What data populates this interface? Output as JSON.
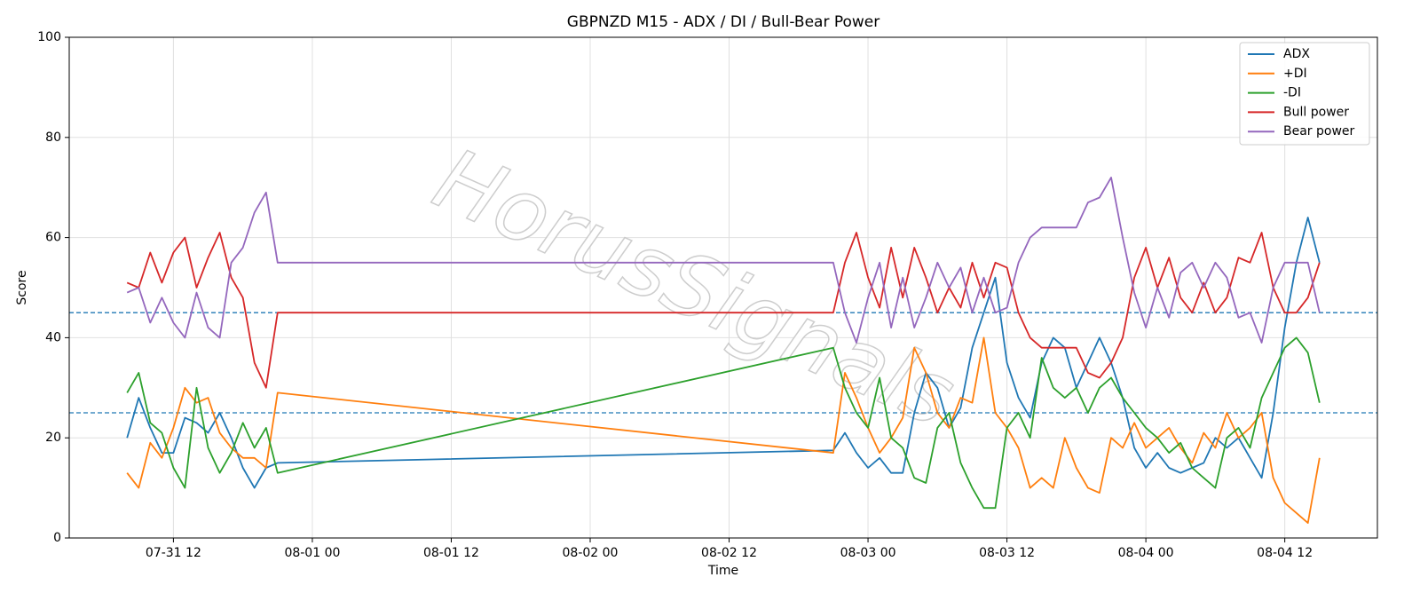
{
  "chart_data": {
    "type": "line",
    "title": "GBPNZD M15 - ADX / DI / Bull-Bear Power",
    "xlabel": "Time",
    "ylabel": "Score",
    "x": [
      "07-31 08",
      "07-31 09",
      "07-31 10",
      "07-31 11",
      "07-31 12",
      "07-31 13",
      "07-31 14",
      "07-31 15",
      "07-31 16",
      "07-31 17",
      "07-31 18",
      "07-31 19",
      "07-31 20",
      "07-31 21",
      "08-02 21",
      "08-02 22",
      "08-02 23",
      "08-03 00",
      "08-03 01",
      "08-03 02",
      "08-03 03",
      "08-03 04",
      "08-03 05",
      "08-03 06",
      "08-03 07",
      "08-03 08",
      "08-03 09",
      "08-03 10",
      "08-03 11",
      "08-03 12",
      "08-03 13",
      "08-03 14",
      "08-03 15",
      "08-03 16",
      "08-03 17",
      "08-03 18",
      "08-03 19",
      "08-03 20",
      "08-03 21",
      "08-03 22",
      "08-03 23",
      "08-04 00",
      "08-04 01",
      "08-04 02",
      "08-04 03",
      "08-04 04",
      "08-04 05",
      "08-04 06",
      "08-04 07",
      "08-04 08",
      "08-04 09",
      "08-04 10",
      "08-04 11",
      "08-04 12",
      "08-04 13",
      "08-04 14",
      "08-04 15"
    ],
    "series": [
      {
        "name": "ADX",
        "color": "#1f77b4",
        "values": [
          20,
          28,
          22,
          17,
          17,
          24,
          23,
          21,
          25,
          20,
          14,
          10,
          14,
          15,
          17.5,
          21,
          17,
          14,
          16,
          13,
          13,
          25,
          33,
          30,
          22,
          26,
          38,
          45,
          52,
          35,
          28,
          24,
          35,
          40,
          38,
          30,
          35,
          40,
          35,
          28,
          18,
          14,
          17,
          14,
          13,
          14,
          15,
          20,
          18,
          20,
          16,
          12,
          25,
          42,
          55,
          64,
          55
        ]
      },
      {
        "name": "+DI",
        "color": "#ff7f0e",
        "values": [
          13,
          10,
          19,
          16,
          22,
          30,
          27,
          28,
          21,
          18,
          16,
          16,
          14,
          29,
          17,
          33,
          28,
          22,
          17,
          20,
          24,
          38,
          33,
          25,
          22,
          28,
          27,
          40,
          25,
          22,
          18,
          10,
          12,
          10,
          20,
          14,
          10,
          9,
          20,
          18,
          23,
          18,
          20,
          22,
          18,
          15,
          21,
          18,
          25,
          20,
          22,
          25,
          12,
          7,
          5,
          3,
          16
        ]
      },
      {
        "name": "-DI",
        "color": "#2ca02c",
        "values": [
          29,
          33,
          23,
          21,
          14,
          10,
          30,
          18,
          13,
          17,
          23,
          18,
          22,
          13,
          38,
          30,
          25,
          22,
          32,
          20,
          18,
          12,
          11,
          22,
          25,
          15,
          10,
          6,
          6,
          22,
          25,
          20,
          36,
          30,
          28,
          30,
          25,
          30,
          32,
          28,
          25,
          22,
          20,
          17,
          19,
          14,
          12,
          10,
          20,
          22,
          18,
          28,
          33,
          38,
          40,
          37,
          27
        ]
      },
      {
        "name": "Bull power",
        "color": "#d62728",
        "values": [
          51,
          50,
          57,
          51,
          57,
          60,
          50,
          56,
          61,
          52,
          48,
          35,
          30,
          45,
          45,
          55,
          61,
          52,
          46,
          58,
          48,
          58,
          52,
          45,
          50,
          46,
          55,
          48,
          55,
          54,
          45,
          40,
          38,
          38,
          38,
          38,
          33,
          32,
          35,
          40,
          52,
          58,
          50,
          56,
          48,
          45,
          51,
          45,
          48,
          56,
          55,
          61,
          50,
          45,
          45,
          48,
          55
        ]
      },
      {
        "name": "Bear power",
        "color": "#9467bd",
        "values": [
          49,
          50,
          43,
          48,
          43,
          40,
          49,
          42,
          40,
          55,
          58,
          65,
          69,
          55,
          55,
          45,
          39,
          48,
          55,
          42,
          52,
          42,
          48,
          55,
          50,
          54,
          45,
          52,
          45,
          46,
          55,
          60,
          62,
          62,
          62,
          62,
          67,
          68,
          72,
          60,
          49,
          42,
          50,
          44,
          53,
          55,
          50,
          55,
          52,
          44,
          45,
          39,
          50,
          55,
          55,
          55,
          45
        ]
      }
    ],
    "xlim": [
      "07-31 03",
      "08-04 20"
    ],
    "xticks": [
      "07-31 12",
      "08-01 00",
      "08-01 12",
      "08-02 00",
      "08-02 12",
      "08-03 00",
      "08-03 12",
      "08-04 00",
      "08-04 12"
    ],
    "ylim": [
      0,
      100
    ],
    "yticks": [
      0,
      20,
      40,
      60,
      80,
      100
    ],
    "hlines": [
      45,
      25
    ],
    "hline_color": "#1f77b4",
    "grid": true,
    "legend": "upper right",
    "watermark": "HorusSignals"
  }
}
